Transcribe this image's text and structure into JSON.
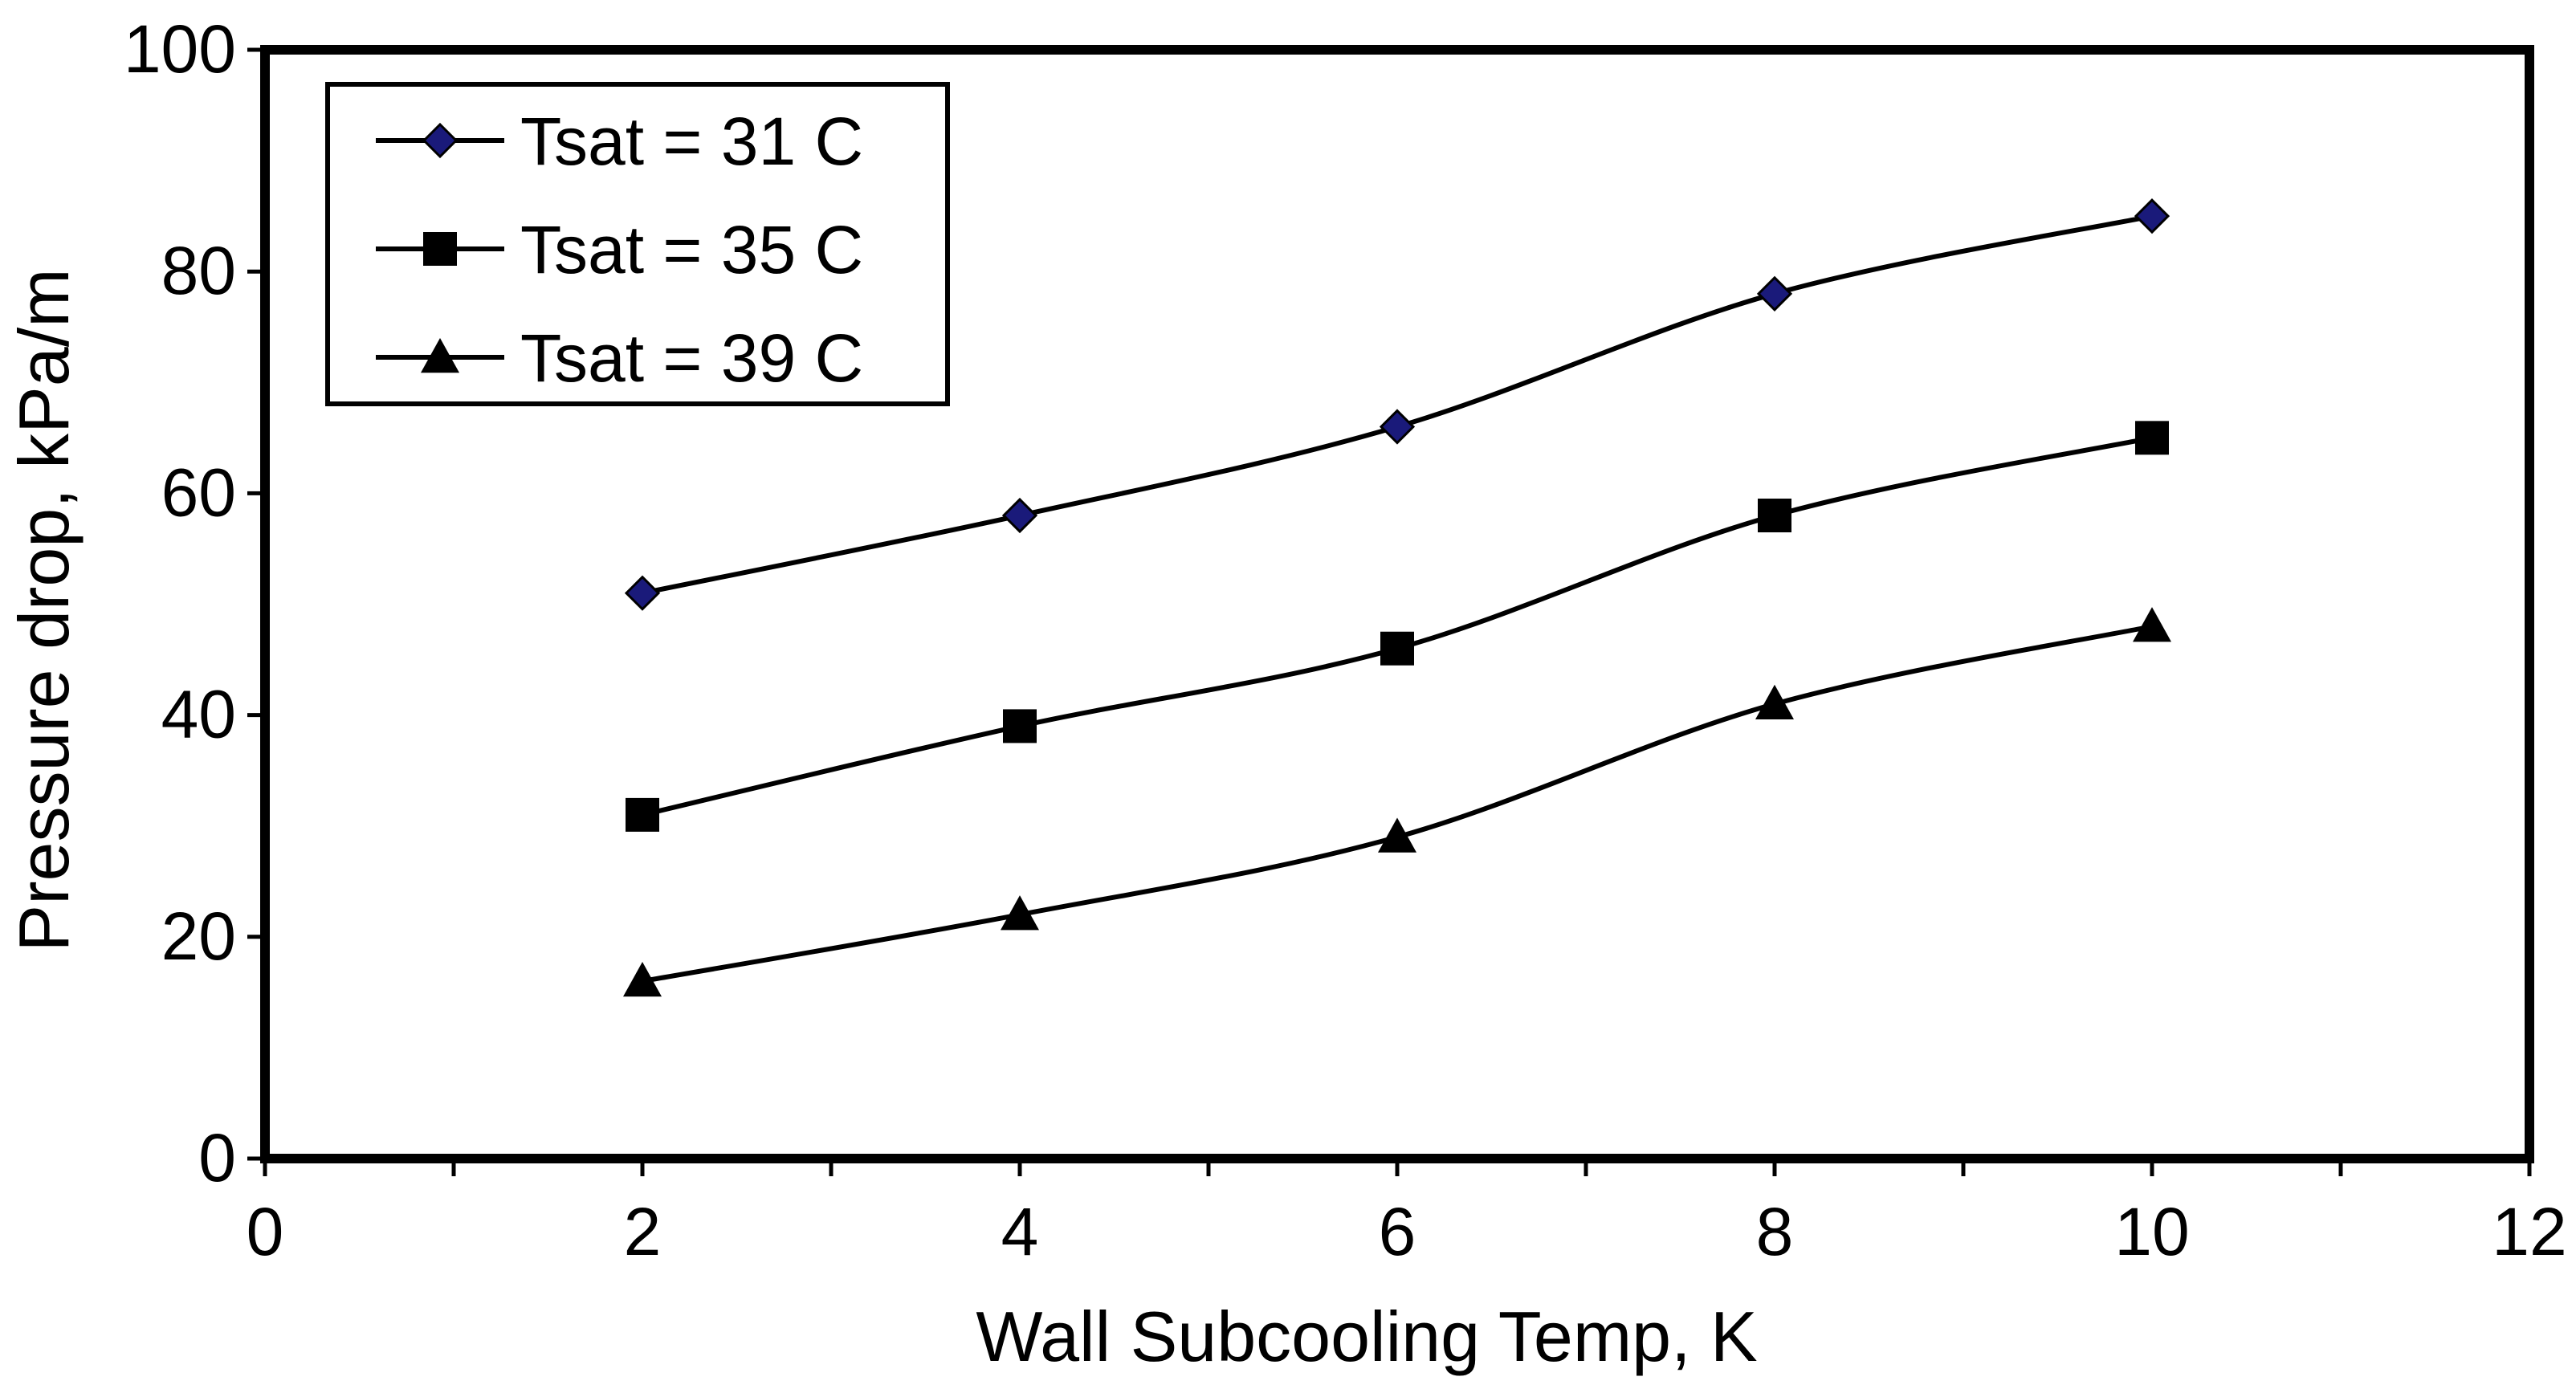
{
  "chart_data": {
    "type": "line",
    "title": "",
    "xlabel": "Wall Subcooling Temp, K",
    "ylabel": "Pressure drop, kPa/m",
    "xlim": [
      0,
      12
    ],
    "ylim": [
      0,
      100
    ],
    "x_ticks": [
      0,
      2,
      4,
      6,
      8,
      10,
      12
    ],
    "x_minor_step": 1,
    "y_ticks": [
      0,
      20,
      40,
      60,
      80,
      100
    ],
    "grid": false,
    "legend_position": "top-left",
    "x": [
      2,
      4,
      6,
      8,
      10
    ],
    "series": [
      {
        "name": "Tsat = 31 C",
        "marker": "diamond",
        "marker_color": "#1a1a7a",
        "line_color": "#000000",
        "values": [
          51,
          58,
          66,
          78,
          85
        ]
      },
      {
        "name": "Tsat = 35 C",
        "marker": "square",
        "marker_color": "#000000",
        "line_color": "#000000",
        "values": [
          31,
          39,
          46,
          58,
          65
        ]
      },
      {
        "name": "Tsat = 39 C",
        "marker": "triangle",
        "marker_color": "#000000",
        "line_color": "#000000",
        "values": [
          16,
          22,
          29,
          41,
          48
        ]
      }
    ]
  }
}
